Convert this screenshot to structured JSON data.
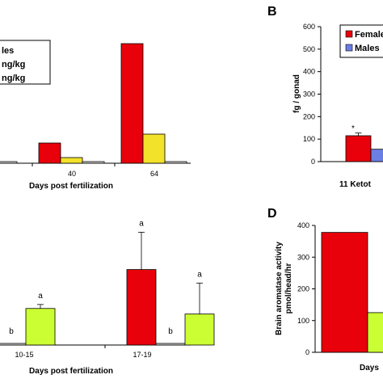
{
  "colors": {
    "red": "#e8000a",
    "yellow": "#f2e22a",
    "lime": "#ccff33",
    "blue": "#6b7fe3",
    "gray": "#d9d9d9",
    "white": "#ffffff"
  },
  "chart_data": [
    {
      "id": "A",
      "type": "bar",
      "panel_label": "",
      "xlabel": "Days post fertilization",
      "ylabel": "",
      "categories": [
        "",
        "40",
        "64"
      ],
      "ylim": [
        0,
        160
      ],
      "legend": {
        "placement": "top-left",
        "entries": [
          "les",
          "ng/kg",
          "ng/kg"
        ],
        "colors": [
          "#d9d9d9",
          "#f2e22a",
          "#ffffff"
        ]
      },
      "series": [
        {
          "values": [
            null,
            25,
            148
          ],
          "color": "#e8000a"
        },
        {
          "values": [
            null,
            7,
            36
          ],
          "color": "#f2e22a"
        },
        {
          "values": [
            2,
            2,
            2
          ],
          "color": "#d9d9d9"
        }
      ]
    },
    {
      "id": "B",
      "type": "bar",
      "panel_label": "B",
      "xlabel": "11 Ketot",
      "ylabel": "fg / gonad",
      "categories": [
        ""
      ],
      "ylim": [
        0,
        600
      ],
      "yticks": [
        "0",
        "100",
        "200",
        "300",
        "400",
        "500",
        "600"
      ],
      "legend": {
        "placement": "top-right",
        "entries": [
          "Female",
          "Males"
        ],
        "colors": [
          "#e8000a",
          "#6b7fe3"
        ]
      },
      "series": [
        {
          "values": [
            115
          ],
          "error": [
            12
          ],
          "color": "#e8000a"
        },
        {
          "values": [
            55
          ],
          "color": "#6b7fe3"
        }
      ],
      "annotations": [
        "*"
      ]
    },
    {
      "id": "C",
      "type": "bar",
      "panel_label": "",
      "xlabel": "Days post fertilization",
      "ylabel": "",
      "categories": [
        "10-15",
        "17-19"
      ],
      "ylim": [
        0,
        180
      ],
      "series": [
        {
          "values": [
            null,
            95
          ],
          "error": [
            null,
            47
          ],
          "labels": [
            "",
            "a"
          ],
          "color": "#e8000a"
        },
        {
          "values": [
            2,
            2
          ],
          "labels": [
            "b",
            "b"
          ],
          "color": "#d9d9d9"
        },
        {
          "values": [
            46,
            39
          ],
          "error": [
            5,
            39
          ],
          "labels": [
            "a",
            "a"
          ],
          "color": "#ccff33"
        }
      ]
    },
    {
      "id": "D",
      "type": "bar",
      "panel_label": "D",
      "xlabel": "Days",
      "ylabel": "Brain aromatase activity pmol/head/hr",
      "ylabel_lines": [
        "Brain aromatase activity",
        "pmol/head/hr"
      ],
      "categories": [
        ""
      ],
      "ylim": [
        0,
        400
      ],
      "yticks": [
        "0",
        "100",
        "200",
        "300",
        "400"
      ],
      "series": [
        {
          "values": [
            378
          ],
          "color": "#e8000a"
        },
        {
          "values": [
            125
          ],
          "color": "#ccff33"
        }
      ]
    }
  ]
}
